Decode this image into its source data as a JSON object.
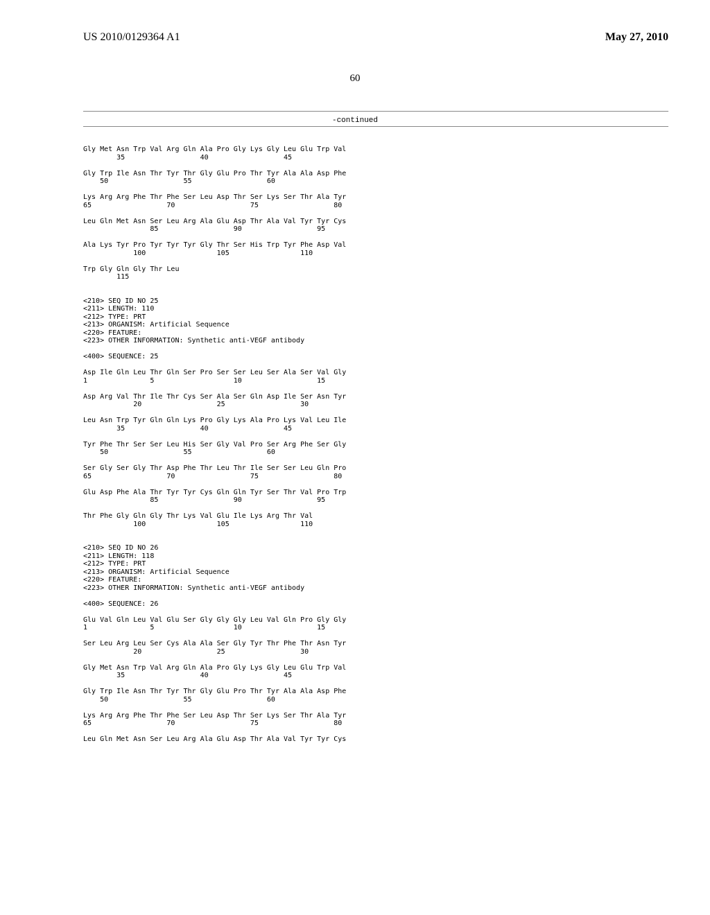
{
  "header": {
    "pub_number": "US 2010/0129364 A1",
    "pub_date": "May 27, 2010"
  },
  "page_number": "60",
  "continued_label": "-continued",
  "sequences": {
    "seq24_partial": [
      "Gly Met Asn Trp Val Arg Gln Ala Pro Gly Lys Gly Leu Glu Trp Val",
      "        35                  40                  45",
      "",
      "Gly Trp Ile Asn Thr Tyr Thr Gly Glu Pro Thr Tyr Ala Ala Asp Phe",
      "    50                  55                  60",
      "",
      "Lys Arg Arg Phe Thr Phe Ser Leu Asp Thr Ser Lys Ser Thr Ala Tyr",
      "65                  70                  75                  80",
      "",
      "Leu Gln Met Asn Ser Leu Arg Ala Glu Asp Thr Ala Val Tyr Tyr Cys",
      "                85                  90                  95",
      "",
      "Ala Lys Tyr Pro Tyr Tyr Tyr Gly Thr Ser His Trp Tyr Phe Asp Val",
      "            100                 105                 110",
      "",
      "Trp Gly Gln Gly Thr Leu",
      "        115"
    ],
    "seq25_header": [
      "<210> SEQ ID NO 25",
      "<211> LENGTH: 110",
      "<212> TYPE: PRT",
      "<213> ORGANISM: Artificial Sequence",
      "<220> FEATURE:",
      "<223> OTHER INFORMATION: Synthetic anti-VEGF antibody",
      "",
      "<400> SEQUENCE: 25"
    ],
    "seq25_body": [
      "Asp Ile Gln Leu Thr Gln Ser Pro Ser Ser Leu Ser Ala Ser Val Gly",
      "1               5                   10                  15",
      "",
      "Asp Arg Val Thr Ile Thr Cys Ser Ala Ser Gln Asp Ile Ser Asn Tyr",
      "            20                  25                  30",
      "",
      "Leu Asn Trp Tyr Gln Gln Lys Pro Gly Lys Ala Pro Lys Val Leu Ile",
      "        35                  40                  45",
      "",
      "Tyr Phe Thr Ser Ser Leu His Ser Gly Val Pro Ser Arg Phe Ser Gly",
      "    50                  55                  60",
      "",
      "Ser Gly Ser Gly Thr Asp Phe Thr Leu Thr Ile Ser Ser Leu Gln Pro",
      "65                  70                  75                  80",
      "",
      "Glu Asp Phe Ala Thr Tyr Tyr Cys Gln Gln Tyr Ser Thr Val Pro Trp",
      "                85                  90                  95",
      "",
      "Thr Phe Gly Gln Gly Thr Lys Val Glu Ile Lys Arg Thr Val",
      "            100                 105                 110"
    ],
    "seq26_header": [
      "<210> SEQ ID NO 26",
      "<211> LENGTH: 118",
      "<212> TYPE: PRT",
      "<213> ORGANISM: Artificial Sequence",
      "<220> FEATURE:",
      "<223> OTHER INFORMATION: Synthetic anti-VEGF antibody",
      "",
      "<400> SEQUENCE: 26"
    ],
    "seq26_body": [
      "Glu Val Gln Leu Val Glu Ser Gly Gly Gly Leu Val Gln Pro Gly Gly",
      "1               5                   10                  15",
      "",
      "Ser Leu Arg Leu Ser Cys Ala Ala Ser Gly Tyr Thr Phe Thr Asn Tyr",
      "            20                  25                  30",
      "",
      "Gly Met Asn Trp Val Arg Gln Ala Pro Gly Lys Gly Leu Glu Trp Val",
      "        35                  40                  45",
      "",
      "Gly Trp Ile Asn Thr Tyr Thr Gly Glu Pro Thr Tyr Ala Ala Asp Phe",
      "    50                  55                  60",
      "",
      "Lys Arg Arg Phe Thr Phe Ser Leu Asp Thr Ser Lys Ser Thr Ala Tyr",
      "65                  70                  75                  80",
      "",
      "Leu Gln Met Asn Ser Leu Arg Ala Glu Asp Thr Ala Val Tyr Tyr Cys"
    ]
  }
}
